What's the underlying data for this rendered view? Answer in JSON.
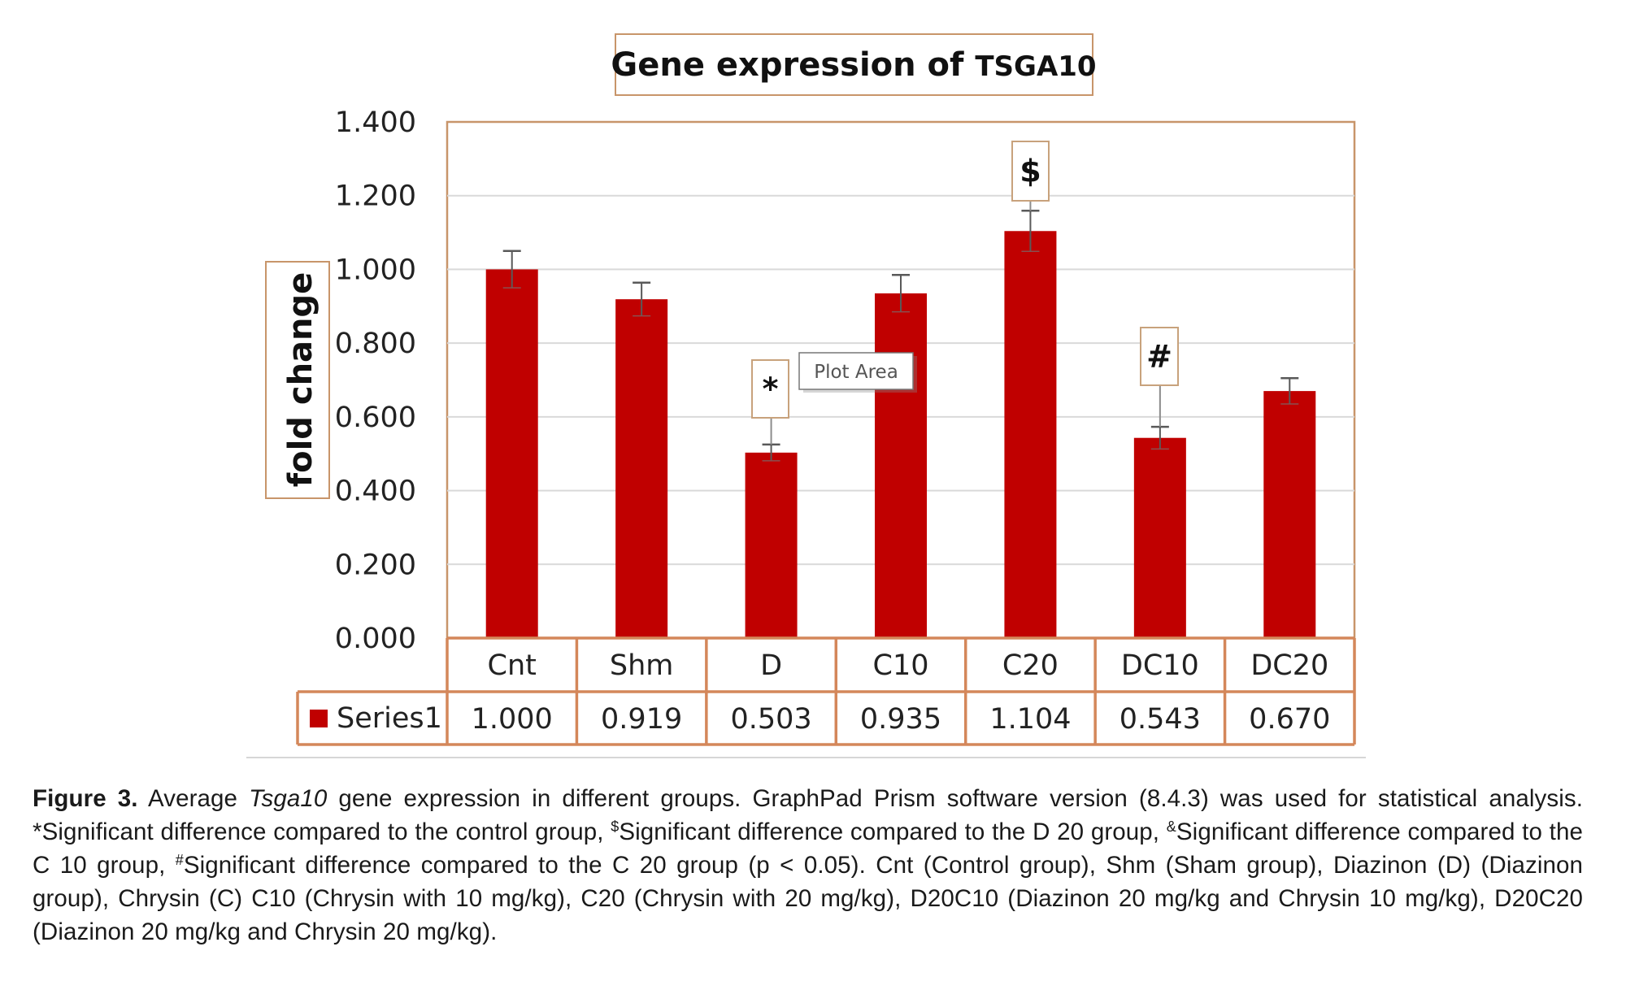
{
  "chart_data": {
    "type": "bar",
    "title": "Gene expression of TSGA10",
    "title_parts": {
      "main": "Gene expression of ",
      "gene": "TSGA10"
    },
    "xlabel": "",
    "ylabel": "fold change",
    "ylim": [
      0,
      1.4
    ],
    "yticks": [
      0,
      0.2,
      0.4,
      0.6,
      0.8,
      1.0,
      1.2,
      1.4
    ],
    "ytick_labels": [
      "0.000",
      "0.200",
      "0.400",
      "0.600",
      "0.800",
      "1.000",
      "1.200",
      "1.400"
    ],
    "grid": true,
    "categories": [
      "Cnt",
      "Shm",
      "D",
      "C10",
      "C20",
      "DC10",
      "DC20"
    ],
    "series": [
      {
        "name": "Series1",
        "color": "#c00000",
        "values": [
          1.0,
          0.919,
          0.503,
          0.935,
          1.104,
          0.543,
          0.67
        ],
        "value_labels": [
          "1.000",
          "0.919",
          "0.503",
          "0.935",
          "1.104",
          "0.543",
          "0.670"
        ],
        "error": [
          0.05,
          0.045,
          0.022,
          0.05,
          0.055,
          0.03,
          0.035
        ]
      }
    ],
    "annotations": [
      {
        "category": "D",
        "text": "*"
      },
      {
        "category": "C20",
        "text": "$"
      },
      {
        "category": "DC10",
        "text": "#"
      }
    ],
    "data_table": true,
    "legend": "data-table-left"
  },
  "tooltip": {
    "text": "Plot Area"
  },
  "colors": {
    "bar": "#c00000",
    "frame": "#c8956a",
    "table_border": "#d4875a",
    "gridline": "#d9d9d9"
  },
  "caption": {
    "label": "Figure 3.",
    "part1": " Average ",
    "gene_italic": "Tsga10",
    "part2": " gene expression in different groups. GraphPad Prism software version (8.4.3) was used for statistical analysis. ",
    "sup_star": "*",
    "part3": "Significant difference compared to the control group, ",
    "sup_dollar": "$",
    "part4": "Significant difference compared to the D 20 group, ",
    "sup_amp": "&",
    "part5": "Significant difference compared to the C 10 group, ",
    "sup_hash": "#",
    "part6": "Significant difference compared to the C 20 group (p < 0.05). Cnt (Control group), Shm (Sham group), Diazinon (D) (Diazinon group), Chrysin (C) C10 (Chrysin with 10 mg/kg), C20 (Chrysin with 20 mg/kg), D20C10 (Diazinon 20 mg/kg and Chrysin 10 mg/kg), D20C20 (Diazinon 20 mg/kg and Chrysin 20 mg/kg)."
  }
}
